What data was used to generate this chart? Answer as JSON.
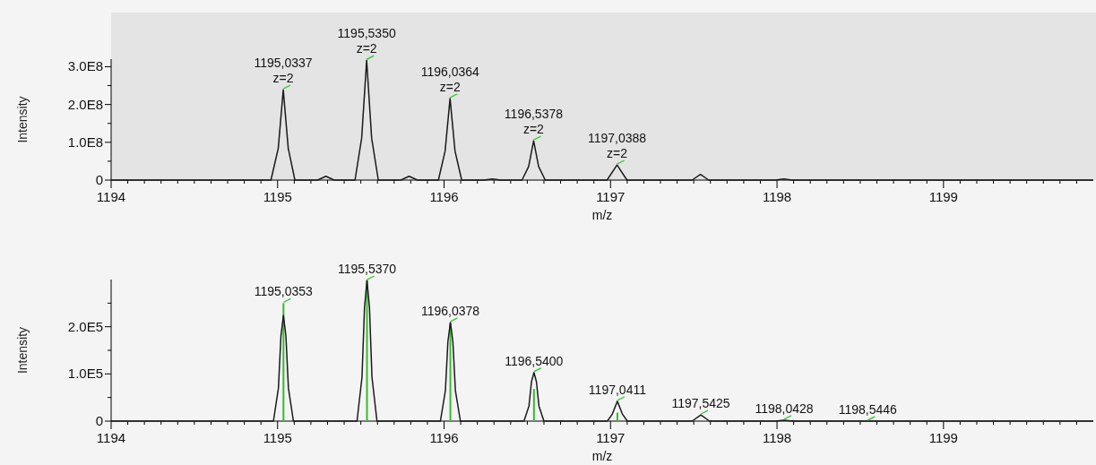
{
  "chart_data": [
    {
      "type": "line",
      "xlabel": "m/z",
      "ylabel": "Intensity",
      "xlim": [
        1194,
        1199.9
      ],
      "ylim": [
        0,
        320000000.0
      ],
      "xticks": [
        1194,
        {
          "value": 1194.1,
          "label": null
        },
        {
          "value": 1194.2,
          "label": null
        },
        {
          "value": 1194.3,
          "label": null
        },
        {
          "value": 1194.4,
          "label": null
        },
        {
          "value": 1194.5,
          "label": null
        },
        {
          "value": 1194.6,
          "label": null
        },
        {
          "value": 1194.7,
          "label": null
        },
        {
          "value": 1194.8,
          "label": null
        },
        {
          "value": 1194.9,
          "label": null
        },
        1195,
        {
          "value": 1195.1,
          "label": null
        },
        {
          "value": 1195.2,
          "label": null
        },
        {
          "value": 1195.3,
          "label": null
        },
        {
          "value": 1195.4,
          "label": null
        },
        {
          "value": 1195.5,
          "label": null
        },
        {
          "value": 1195.6,
          "label": null
        },
        {
          "value": 1195.7,
          "label": null
        },
        {
          "value": 1195.8,
          "label": null
        },
        {
          "value": 1195.9,
          "label": null
        },
        1196,
        {
          "value": 1196.1,
          "label": null
        },
        {
          "value": 1196.2,
          "label": null
        },
        {
          "value": 1196.3,
          "label": null
        },
        {
          "value": 1196.4,
          "label": null
        },
        {
          "value": 1196.5,
          "label": null
        },
        {
          "value": 1196.6,
          "label": null
        },
        {
          "value": 1196.7,
          "label": null
        },
        {
          "value": 1196.8,
          "label": null
        },
        {
          "value": 1196.9,
          "label": null
        },
        1197,
        {
          "value": 1197.1,
          "label": null
        },
        {
          "value": 1197.2,
          "label": null
        },
        {
          "value": 1197.3,
          "label": null
        },
        {
          "value": 1197.4,
          "label": null
        },
        {
          "value": 1197.5,
          "label": null
        },
        {
          "value": 1197.6,
          "label": null
        },
        {
          "value": 1197.7,
          "label": null
        },
        {
          "value": 1197.8,
          "label": null
        },
        {
          "value": 1197.9,
          "label": null
        },
        1198,
        {
          "value": 1198.1,
          "label": null
        },
        {
          "value": 1198.2,
          "label": null
        },
        {
          "value": 1198.3,
          "label": null
        },
        {
          "value": 1198.4,
          "label": null
        },
        {
          "value": 1198.5,
          "label": null
        },
        {
          "value": 1198.6,
          "label": null
        },
        {
          "value": 1198.7,
          "label": null
        },
        {
          "value": 1198.8,
          "label": null
        },
        {
          "value": 1198.9,
          "label": null
        },
        1199,
        {
          "value": 1199.1,
          "label": null
        },
        {
          "value": 1199.2,
          "label": null
        },
        {
          "value": 1199.3,
          "label": null
        },
        {
          "value": 1199.4,
          "label": null
        },
        {
          "value": 1199.5,
          "label": null
        },
        {
          "value": 1199.6,
          "label": null
        },
        {
          "value": 1199.7,
          "label": null
        },
        {
          "value": 1199.8,
          "label": null
        }
      ],
      "yticks": [
        0,
        {
          "value": 50000000.0,
          "label": null
        },
        {
          "value": 100000000.0,
          "label": "1.0E8"
        },
        {
          "value": 150000000.0,
          "label": null
        },
        {
          "value": 200000000.0,
          "label": "2.0E8"
        },
        {
          "value": 250000000.0,
          "label": null
        },
        {
          "value": 300000000.0,
          "label": "3.0E8"
        }
      ],
      "series": [
        {
          "color": "#1a1a1a",
          "x": [
            1194,
            1194.96,
            1195.004,
            1195.034,
            1195.064,
            1195.104,
            1195.24,
            1195.29,
            1195.34,
            1195.465,
            1195.505,
            1195.535,
            1195.565,
            1195.605,
            1195.74,
            1195.79,
            1195.84,
            1195.966,
            1196.006,
            1196.036,
            1196.066,
            1196.106,
            1196.24,
            1196.29,
            1196.34,
            1196.468,
            1196.508,
            1196.538,
            1196.568,
            1196.608,
            1196.979,
            1197.039,
            1197.099,
            1197.49,
            1197.54,
            1197.59,
            1197.99,
            1198.04,
            1198.09,
            1199.9
          ],
          "values": [
            0,
            0,
            84000000.0,
            239000000.0,
            84000000.0,
            0,
            0,
            10000000.0,
            0,
            0,
            111000000.0,
            317000000.0,
            111000000.0,
            0,
            0,
            10000000.0,
            0,
            0,
            76000000.0,
            216000000.0,
            76000000.0,
            0,
            0,
            3000000.0,
            0,
            0,
            36000000.0,
            104000000.0,
            36000000.0,
            0,
            0,
            40000000.0,
            0,
            0,
            15000000.0,
            0,
            0,
            3000000.0,
            0,
            0
          ]
        }
      ],
      "annotations": [
        {
          "text": "1195,0337\nz=2",
          "x": 1195.0337,
          "y": 239000000.0
        },
        {
          "text": "1195,5350\nz=2",
          "x": 1195.535,
          "y": 317000000.0
        },
        {
          "text": "1196,0364\nz=2",
          "x": 1196.0364,
          "y": 216000000.0
        },
        {
          "text": "1196,5378\nz=2",
          "x": 1196.5378,
          "y": 104000000.0
        },
        {
          "text": "1197,0388\nz=2",
          "x": 1197.0388,
          "y": 40000000.0
        }
      ]
    },
    {
      "type": "line",
      "xlabel": "m/z",
      "ylabel": "Intensity",
      "xlim": [
        1194,
        1199.9
      ],
      "ylim": [
        0,
        300000.0
      ],
      "xticks": [
        1194,
        {
          "value": 1194.1,
          "label": null
        },
        {
          "value": 1194.2,
          "label": null
        },
        {
          "value": 1194.3,
          "label": null
        },
        {
          "value": 1194.4,
          "label": null
        },
        {
          "value": 1194.5,
          "label": null
        },
        {
          "value": 1194.6,
          "label": null
        },
        {
          "value": 1194.7,
          "label": null
        },
        {
          "value": 1194.8,
          "label": null
        },
        {
          "value": 1194.9,
          "label": null
        },
        1195,
        {
          "value": 1195.1,
          "label": null
        },
        {
          "value": 1195.2,
          "label": null
        },
        {
          "value": 1195.3,
          "label": null
        },
        {
          "value": 1195.4,
          "label": null
        },
        {
          "value": 1195.5,
          "label": null
        },
        {
          "value": 1195.6,
          "label": null
        },
        {
          "value": 1195.7,
          "label": null
        },
        {
          "value": 1195.8,
          "label": null
        },
        {
          "value": 1195.9,
          "label": null
        },
        1196,
        {
          "value": 1196.1,
          "label": null
        },
        {
          "value": 1196.2,
          "label": null
        },
        {
          "value": 1196.3,
          "label": null
        },
        {
          "value": 1196.4,
          "label": null
        },
        {
          "value": 1196.5,
          "label": null
        },
        {
          "value": 1196.6,
          "label": null
        },
        {
          "value": 1196.7,
          "label": null
        },
        {
          "value": 1196.8,
          "label": null
        },
        {
          "value": 1196.9,
          "label": null
        },
        1197,
        {
          "value": 1197.1,
          "label": null
        },
        {
          "value": 1197.2,
          "label": null
        },
        {
          "value": 1197.3,
          "label": null
        },
        {
          "value": 1197.4,
          "label": null
        },
        {
          "value": 1197.5,
          "label": null
        },
        {
          "value": 1197.6,
          "label": null
        },
        {
          "value": 1197.7,
          "label": null
        },
        {
          "value": 1197.8,
          "label": null
        },
        {
          "value": 1197.9,
          "label": null
        },
        1198,
        {
          "value": 1198.1,
          "label": null
        },
        {
          "value": 1198.2,
          "label": null
        },
        {
          "value": 1198.3,
          "label": null
        },
        {
          "value": 1198.4,
          "label": null
        },
        {
          "value": 1198.5,
          "label": null
        },
        {
          "value": 1198.6,
          "label": null
        },
        {
          "value": 1198.7,
          "label": null
        },
        {
          "value": 1198.8,
          "label": null
        },
        {
          "value": 1198.9,
          "label": null
        },
        1199,
        {
          "value": 1199.1,
          "label": null
        },
        {
          "value": 1199.2,
          "label": null
        },
        {
          "value": 1199.3,
          "label": null
        },
        {
          "value": 1199.4,
          "label": null
        },
        {
          "value": 1199.5,
          "label": null
        },
        {
          "value": 1199.6,
          "label": null
        },
        {
          "value": 1199.7,
          "label": null
        },
        {
          "value": 1199.8,
          "label": null
        }
      ],
      "yticks": [
        0,
        {
          "value": 50000.0,
          "label": null
        },
        {
          "value": 100000.0,
          "label": "1.0E5"
        },
        {
          "value": 150000.0,
          "label": null
        },
        {
          "value": 200000.0,
          "label": "2.0E5"
        },
        {
          "value": 250000.0,
          "label": null
        }
      ],
      "series": [
        {
          "color": "#1a1a1a",
          "x": [
            1194,
            1194.975,
            1195.005,
            1195.02,
            1195.035,
            1195.05,
            1195.065,
            1195.095,
            1195.477,
            1195.507,
            1195.522,
            1195.537,
            1195.552,
            1195.567,
            1195.597,
            1195.978,
            1196.008,
            1196.023,
            1196.038,
            1196.053,
            1196.068,
            1196.098,
            1196.48,
            1196.51,
            1196.525,
            1196.54,
            1196.555,
            1196.57,
            1196.6,
            1196.981,
            1197.011,
            1197.041,
            1197.071,
            1197.101,
            1197.49,
            1197.5425,
            1197.595,
            1197.99,
            1198.043,
            1198.096,
            1199.9
          ],
          "values": [
            0,
            0,
            70000.0,
            180000.0,
            224000.0,
            180000.0,
            70000.0,
            0,
            0,
            93000.0,
            240000.0,
            298000.0,
            240000.0,
            93000.0,
            0,
            0,
            65000.0,
            168000.0,
            209000.0,
            168000.0,
            65000.0,
            0,
            0,
            32000.0,
            83000.0,
            103000.0,
            83000.0,
            32000.0,
            0,
            0,
            15000.0,
            42000.0,
            15000.0,
            0,
            0,
            13000.0,
            0,
            0,
            2000.0,
            0,
            0
          ]
        },
        {
          "type": "bar",
          "color": "#33bb33",
          "x": [
            1195.0353,
            1195.537,
            1196.0378,
            1196.54,
            1197.0411
          ],
          "values": [
            250000.0,
            298000.0,
            209000.0,
            68000.0,
            18000.0
          ]
        }
      ],
      "annotations": [
        {
          "text": "1195,0353",
          "x": 1195.0353,
          "y": 250000.0
        },
        {
          "text": "1195,5370",
          "x": 1195.537,
          "y": 298000.0
        },
        {
          "text": "1196,0378",
          "x": 1196.0378,
          "y": 209000.0
        },
        {
          "text": "1196,5400",
          "x": 1196.54,
          "y": 103000.0
        },
        {
          "text": "1197,0411",
          "x": 1197.0411,
          "y": 42000.0
        },
        {
          "text": "1197,5425",
          "x": 1197.5425,
          "y": 13000.0
        },
        {
          "text": "1198,0428",
          "x": 1198.0428,
          "y": 2000.0
        },
        {
          "text": "1198,5446",
          "x": 1198.5446,
          "y": 0
        }
      ]
    }
  ]
}
